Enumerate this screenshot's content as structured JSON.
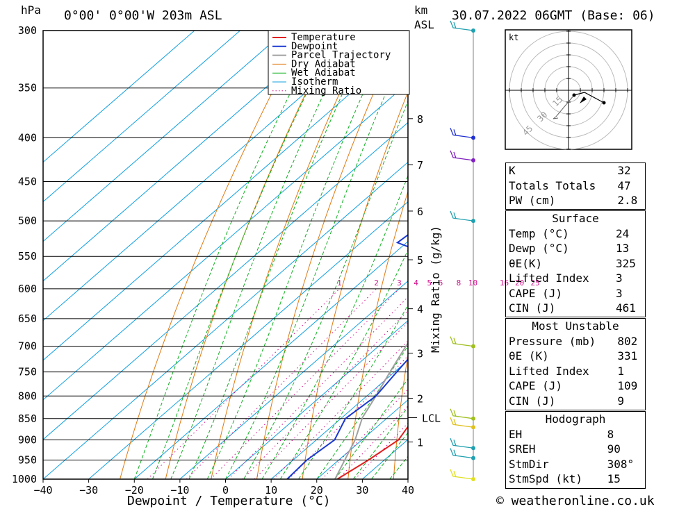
{
  "header": {
    "hpa_unit": "hPa",
    "location": "0°00' 0°00'W 203m ASL",
    "km_unit": "km",
    "asl_unit": "ASL",
    "date": "30.07.2022 06GMT (Base: 06)"
  },
  "footer": {
    "credit": "© weatheronline.co.uk"
  },
  "colors": {
    "temperature": "#e02020",
    "dewpoint": "#1a3ad0",
    "parcel": "#a0a0a0",
    "dry_adiabat": "#e07a10",
    "wet_adiabat": "#10b020",
    "isotherm": "#10a0e0",
    "mixing_ratio": "#d0108c",
    "wind_line": "#808080"
  },
  "chart_data": {
    "type": "skew-t",
    "xlabel": "Dewpoint / Temperature (°C)",
    "ylabel_left": "hPa",
    "ylabel_mixing": "Mixing Ratio (g/kg)",
    "x_ticks": [
      "−40",
      "−30",
      "−20",
      "−10",
      "0",
      "10",
      "20",
      "30",
      "40"
    ],
    "pressure_ticks": [
      "300",
      "350",
      "400",
      "450",
      "500",
      "550",
      "600",
      "650",
      "700",
      "750",
      "800",
      "850",
      "900",
      "950",
      "1000"
    ],
    "height_ticks": [
      {
        "label": "8",
        "p": 380
      },
      {
        "label": "7",
        "p": 430
      },
      {
        "label": "6",
        "p": 487
      },
      {
        "label": "5",
        "p": 555
      },
      {
        "label": "4",
        "p": 633
      },
      {
        "label": "3",
        "p": 713
      },
      {
        "label": "2",
        "p": 805
      },
      {
        "label": "1",
        "p": 905
      }
    ],
    "lcl": {
      "label": "LCL",
      "p": 848
    },
    "mixing_ratio_labels": [
      "1",
      "2",
      "3",
      "4",
      "5",
      "6",
      "8",
      "10",
      "16",
      "20",
      "25"
    ],
    "legend": {
      "placement": "top-center",
      "items": [
        "Temperature",
        "Dewpoint",
        "Parcel Trajectory",
        "Dry Adiabat",
        "Wet Adiabat",
        "Isotherm",
        "Mixing Ratio"
      ]
    },
    "temperature": [
      {
        "p": 1000,
        "t": 24.5
      },
      {
        "p": 950,
        "t": 26.5
      },
      {
        "p": 900,
        "t": 28
      },
      {
        "p": 850,
        "t": 26
      },
      {
        "p": 800,
        "t": 22
      },
      {
        "p": 750,
        "t": 17.5
      },
      {
        "p": 700,
        "t": 13
      },
      {
        "p": 650,
        "t": 8.5
      },
      {
        "p": 610,
        "t": 5
      },
      {
        "p": 600,
        "t": 6
      },
      {
        "p": 560,
        "t": 3
      },
      {
        "p": 530,
        "t": 2.5
      },
      {
        "p": 500,
        "t": -2
      },
      {
        "p": 450,
        "t": -7
      },
      {
        "p": 400,
        "t": -15
      },
      {
        "p": 350,
        "t": -24
      },
      {
        "p": 300,
        "t": -34
      }
    ],
    "dewpoint": [
      {
        "p": 1000,
        "t": 13.5
      },
      {
        "p": 950,
        "t": 13
      },
      {
        "p": 900,
        "t": 14
      },
      {
        "p": 850,
        "t": 11
      },
      {
        "p": 800,
        "t": 12
      },
      {
        "p": 750,
        "t": 10.5
      },
      {
        "p": 700,
        "t": 9
      },
      {
        "p": 650,
        "t": 5
      },
      {
        "p": 610,
        "t": 2
      },
      {
        "p": 598,
        "t": 4
      },
      {
        "p": 590,
        "t": 0
      },
      {
        "p": 560,
        "t": -5
      },
      {
        "p": 530,
        "t": -22
      },
      {
        "p": 500,
        "t": -21
      },
      {
        "p": 450,
        "t": -32
      },
      {
        "p": 400,
        "t": -38
      },
      {
        "p": 350,
        "t": -47
      },
      {
        "p": 300,
        "t": -49
      }
    ],
    "parcel": [
      {
        "p": 1000,
        "t": 24
      },
      {
        "p": 900,
        "t": 18.5
      },
      {
        "p": 848,
        "t": 14.5
      },
      {
        "p": 800,
        "t": 12
      },
      {
        "p": 750,
        "t": 9
      },
      {
        "p": 700,
        "t": 6
      },
      {
        "p": 650,
        "t": 3
      },
      {
        "p": 600,
        "t": -1
      },
      {
        "p": 550,
        "t": -5
      },
      {
        "p": 500,
        "t": -10
      },
      {
        "p": 450,
        "t": -16
      },
      {
        "p": 400,
        "t": -23
      },
      {
        "p": 350,
        "t": -31
      },
      {
        "p": 300,
        "t": -41
      }
    ],
    "wind_barbs": [
      {
        "p": 300,
        "color": "#20a0b0"
      },
      {
        "p": 400,
        "color": "#2030d0"
      },
      {
        "p": 425,
        "color": "#8020c0"
      },
      {
        "p": 500,
        "color": "#20a0b0"
      },
      {
        "p": 700,
        "color": "#a0c020"
      },
      {
        "p": 850,
        "color": "#a0c020"
      },
      {
        "p": 870,
        "color": "#e0c020"
      },
      {
        "p": 920,
        "color": "#20a0b0"
      },
      {
        "p": 945,
        "color": "#20a0b0"
      },
      {
        "p": 1000,
        "color": "#e0e020"
      }
    ],
    "hodograph": {
      "unit": "kt",
      "ring_labels": [
        "15",
        "30",
        "45"
      ]
    }
  },
  "indices": [
    {
      "label": "K",
      "value": "32"
    },
    {
      "label": "Totals Totals",
      "value": "47"
    },
    {
      "label": "PW (cm)",
      "value": "2.8"
    }
  ],
  "surface": {
    "title": "Surface",
    "rows": [
      {
        "label": "Temp (°C)",
        "value": "24"
      },
      {
        "label": "Dewp (°C)",
        "value": "13"
      },
      {
        "label": "θE(K)",
        "value": "325"
      },
      {
        "label": "Lifted Index",
        "value": "3"
      },
      {
        "label": "CAPE (J)",
        "value": "3"
      },
      {
        "label": "CIN (J)",
        "value": "461"
      }
    ]
  },
  "most_unstable": {
    "title": "Most Unstable",
    "rows": [
      {
        "label": "Pressure (mb)",
        "value": "802"
      },
      {
        "label": "θE (K)",
        "value": "331"
      },
      {
        "label": "Lifted Index",
        "value": "1"
      },
      {
        "label": "CAPE (J)",
        "value": "109"
      },
      {
        "label": "CIN (J)",
        "value": "9"
      }
    ]
  },
  "hodograph_table": {
    "title": "Hodograph",
    "rows": [
      {
        "label": "EH",
        "value": "8"
      },
      {
        "label": "SREH",
        "value": "90"
      },
      {
        "label": "StmDir",
        "value": "308°"
      },
      {
        "label": "StmSpd (kt)",
        "value": "15"
      }
    ]
  }
}
